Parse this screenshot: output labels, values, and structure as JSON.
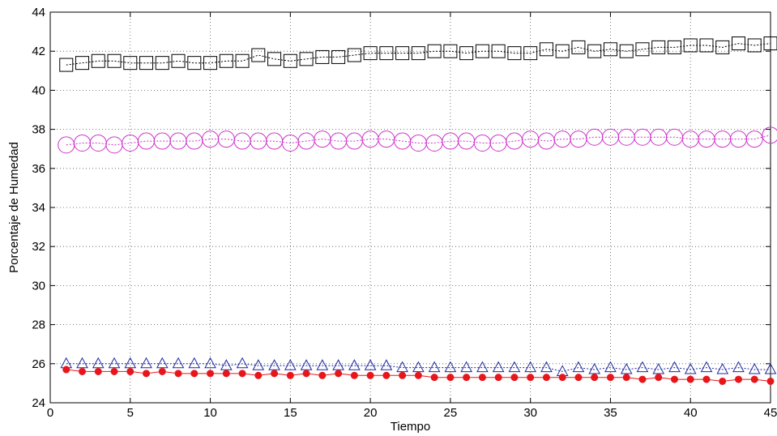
{
  "chart_data": {
    "type": "line",
    "xlabel": "Tiempo",
    "ylabel": "Porcentaje de Humedad",
    "xlim": [
      0,
      45
    ],
    "ylim": [
      24,
      44
    ],
    "xticks": [
      0,
      5,
      10,
      15,
      20,
      25,
      30,
      35,
      40,
      45
    ],
    "yticks": [
      24,
      26,
      28,
      30,
      32,
      34,
      36,
      38,
      40,
      42,
      44
    ],
    "grid": true,
    "x": [
      1,
      2,
      3,
      4,
      5,
      6,
      7,
      8,
      9,
      10,
      11,
      12,
      13,
      14,
      15,
      16,
      17,
      18,
      19,
      20,
      21,
      22,
      23,
      24,
      25,
      26,
      27,
      28,
      29,
      30,
      31,
      32,
      33,
      34,
      35,
      36,
      37,
      38,
      39,
      40,
      41,
      42,
      43,
      44,
      45
    ],
    "series": [
      {
        "marker": "square",
        "color": "#000000",
        "values": [
          41.3,
          41.4,
          41.5,
          41.5,
          41.4,
          41.4,
          41.4,
          41.5,
          41.4,
          41.4,
          41.5,
          41.5,
          41.8,
          41.6,
          41.5,
          41.6,
          41.7,
          41.7,
          41.8,
          41.9,
          41.9,
          41.9,
          41.9,
          42.0,
          42.0,
          41.9,
          42.0,
          42.0,
          41.9,
          41.9,
          42.1,
          42.0,
          42.2,
          42.0,
          42.1,
          42.0,
          42.1,
          42.2,
          42.2,
          42.3,
          42.3,
          42.2,
          42.4,
          42.3,
          42.4
        ]
      },
      {
        "marker": "circle",
        "color": "#cc33cc",
        "values": [
          37.2,
          37.3,
          37.3,
          37.2,
          37.3,
          37.4,
          37.4,
          37.4,
          37.4,
          37.5,
          37.5,
          37.4,
          37.4,
          37.4,
          37.3,
          37.4,
          37.5,
          37.4,
          37.4,
          37.5,
          37.5,
          37.4,
          37.3,
          37.3,
          37.4,
          37.4,
          37.3,
          37.3,
          37.4,
          37.5,
          37.4,
          37.5,
          37.5,
          37.6,
          37.6,
          37.6,
          37.6,
          37.6,
          37.6,
          37.5,
          37.5,
          37.5,
          37.5,
          37.5,
          37.7
        ]
      },
      {
        "marker": "triangle",
        "color": "#1f2a9e",
        "values": [
          26.0,
          26.0,
          26.0,
          26.0,
          26.0,
          26.0,
          26.0,
          26.0,
          26.0,
          26.0,
          25.9,
          26.0,
          25.9,
          25.9,
          25.9,
          25.9,
          25.9,
          25.9,
          25.9,
          25.9,
          25.9,
          25.8,
          25.8,
          25.8,
          25.8,
          25.8,
          25.8,
          25.8,
          25.8,
          25.8,
          25.8,
          25.6,
          25.8,
          25.7,
          25.8,
          25.7,
          25.8,
          25.7,
          25.8,
          25.7,
          25.8,
          25.7,
          25.8,
          25.7,
          25.7
        ]
      },
      {
        "marker": "dot",
        "color": "#e8161b",
        "values": [
          25.7,
          25.6,
          25.6,
          25.6,
          25.6,
          25.5,
          25.6,
          25.5,
          25.5,
          25.5,
          25.5,
          25.5,
          25.4,
          25.5,
          25.4,
          25.5,
          25.4,
          25.5,
          25.4,
          25.4,
          25.4,
          25.4,
          25.4,
          25.3,
          25.3,
          25.3,
          25.3,
          25.3,
          25.3,
          25.3,
          25.3,
          25.3,
          25.3,
          25.3,
          25.3,
          25.3,
          25.2,
          25.3,
          25.2,
          25.2,
          25.2,
          25.1,
          25.2,
          25.2,
          25.1
        ]
      }
    ]
  }
}
